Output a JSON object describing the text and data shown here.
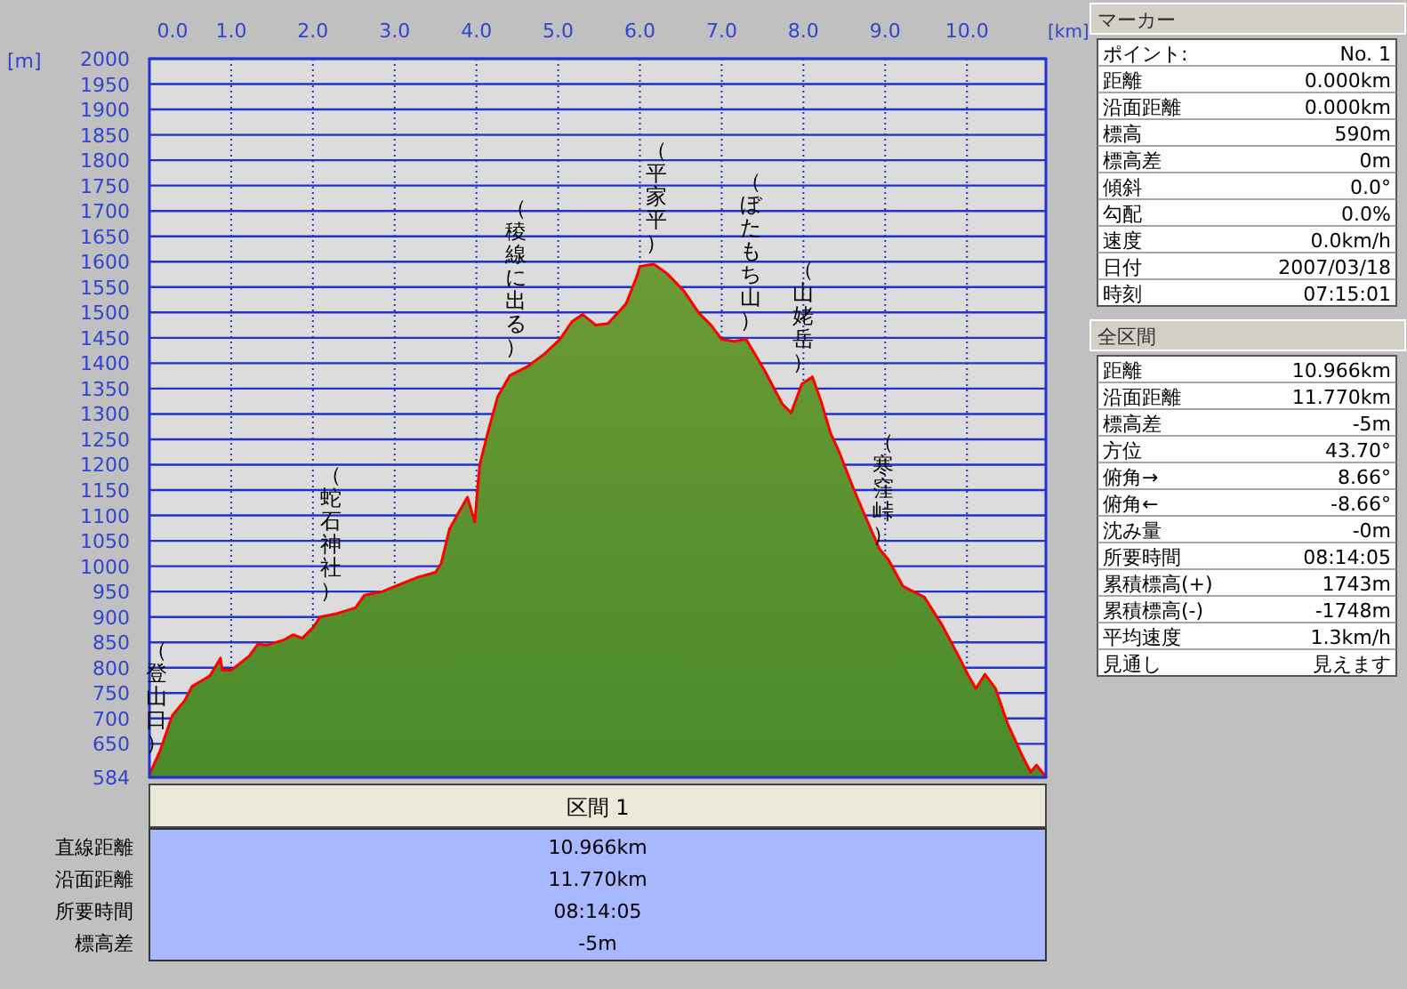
{
  "chart_data": [
    {
      "type": "area",
      "xlabel": "[km]",
      "ylabel": "[m]",
      "color": "#ff0000",
      "x": [
        0,
        0.13,
        0.28,
        0.43,
        0.52,
        0.74,
        0.87,
        0.89,
        1.0,
        1.22,
        1.33,
        1.43,
        1.65,
        1.76,
        1.87,
        2.0,
        2.09,
        2.3,
        2.52,
        2.63,
        2.85,
        3.0,
        3.28,
        3.5,
        3.57,
        3.67,
        3.78,
        3.89,
        3.98,
        4.04,
        4.15,
        4.26,
        4.41,
        4.63,
        4.83,
        5.02,
        5.17,
        5.3,
        5.46,
        5.61,
        5.83,
        5.96,
        6.0,
        6.17,
        6.33,
        6.54,
        6.72,
        6.87,
        7.0,
        7.15,
        7.3,
        7.52,
        7.74,
        7.85,
        7.98,
        8.11,
        8.22,
        8.33,
        8.43,
        8.61,
        8.72,
        8.93,
        9.04,
        9.22,
        9.48,
        9.7,
        9.91,
        10.02,
        10.11,
        10.22,
        10.35,
        10.5,
        10.67,
        10.78,
        10.85,
        10.966
      ],
      "values": [
        590,
        636,
        706,
        735,
        763,
        784,
        819,
        795,
        795,
        823,
        847,
        844,
        855,
        865,
        858,
        879,
        900,
        907,
        918,
        943,
        950,
        960,
        978,
        988,
        1006,
        1073,
        1105,
        1136,
        1087,
        1200,
        1270,
        1334,
        1376,
        1394,
        1418,
        1447,
        1482,
        1496,
        1475,
        1478,
        1517,
        1570,
        1591,
        1595,
        1577,
        1542,
        1499,
        1475,
        1447,
        1443,
        1447,
        1387,
        1320,
        1302,
        1359,
        1373,
        1323,
        1263,
        1228,
        1154,
        1112,
        1034,
        1013,
        960,
        939,
        883,
        819,
        784,
        759,
        787,
        759,
        689,
        629,
        594,
        608,
        585
      ],
      "xlim": [
        0,
        10.966
      ],
      "ylim": [
        584,
        2000
      ],
      "xticks": [
        {
          "value": 0,
          "label": "0.0"
        },
        {
          "value": 1,
          "label": "1.0"
        },
        {
          "value": 2,
          "label": "2.0"
        },
        {
          "value": 3,
          "label": "3.0"
        },
        {
          "value": 4,
          "label": "4.0"
        },
        {
          "value": 5,
          "label": "5.0"
        },
        {
          "value": 6,
          "label": "6.0"
        },
        {
          "value": 7,
          "label": "7.0"
        },
        {
          "value": 8,
          "label": "8.0"
        },
        {
          "value": 9,
          "label": "9.0"
        },
        {
          "value": 10,
          "label": "10.0"
        }
      ],
      "yticks": [
        584,
        650,
        700,
        750,
        800,
        850,
        900,
        950,
        1000,
        1050,
        1100,
        1150,
        1200,
        1250,
        1300,
        1350,
        1400,
        1450,
        1500,
        1550,
        1600,
        1650,
        1700,
        1750,
        1800,
        1850,
        1900,
        1950,
        2000
      ],
      "grid": true,
      "annotations": [
        {
          "text": "（登山口）",
          "x": 0.09,
          "y": 610
        },
        {
          "text": "（蛇石神社）",
          "x": 2.22,
          "y": 910
        },
        {
          "text": "（稜線に出る）",
          "x": 4.48,
          "y": 1390
        },
        {
          "text": "（平家平）",
          "x": 6.2,
          "y": 1595
        },
        {
          "text": "（ぼたもち山）",
          "x": 7.35,
          "y": 1443
        },
        {
          "text": "（山姥岳）",
          "x": 8.0,
          "y": 1360
        },
        {
          "text": "（寒窪峠）",
          "x": 8.98,
          "y": 1020
        }
      ]
    },
    {
      "type": "other",
      "title": "マーカー",
      "annotations": [
        "ポイント:",
        "No. 1",
        "距離",
        "0.000km",
        "沿面距離",
        "0.000km",
        "標高",
        "590m",
        "標高差",
        "0m",
        "傾斜",
        "0.0°",
        "勾配",
        "0.0%",
        "速度",
        "0.0km/h",
        "日付",
        "2007/03/18",
        "時刻",
        "07:15:01"
      ]
    },
    {
      "type": "other",
      "title": "全区間",
      "annotations": [
        "距離",
        "10.966km",
        "沿面距離",
        "11.770km",
        "標高差",
        "-5m",
        "方位",
        "43.70°",
        "俯角→",
        "8.66°",
        "俯角←",
        "-8.66°",
        "沈み量",
        "-0m",
        "所要時間",
        "08:14:05",
        "累積標高(+)",
        "1743m",
        "累積標高(-)",
        "-1748m",
        "平均速度",
        "1.3km/h",
        "見通し",
        "見えます"
      ]
    },
    {
      "type": "other",
      "title": "区間 1",
      "annotations": [
        "直線距離",
        "10.966km",
        "沿面距離",
        "11.770km",
        "所要時間",
        "08:14:05",
        "標高差",
        "-5m"
      ]
    }
  ]
}
